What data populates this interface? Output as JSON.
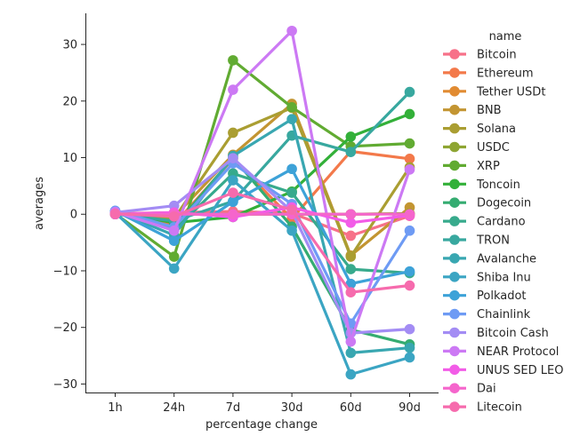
{
  "chart_data": {
    "type": "line",
    "xlabel": "percentage change",
    "ylabel": "averages",
    "categories": [
      "1h",
      "24h",
      "7d",
      "30d",
      "60d",
      "90d"
    ],
    "ylim": [
      -31.5,
      35.5
    ],
    "yticks": [
      -30,
      -20,
      -10,
      0,
      10,
      20,
      30
    ],
    "grid": false,
    "legend": {
      "title": "name",
      "placement": "right"
    },
    "series": [
      {
        "name": "Bitcoin",
        "color": "#f77189",
        "values": [
          0.1,
          0.3,
          0.5,
          0.2,
          -3.8,
          -0.3
        ]
      },
      {
        "name": "Ethereum",
        "color": "#f3794a",
        "values": [
          0.2,
          -1.8,
          9.8,
          -0.8,
          11.1,
          9.8
        ]
      },
      {
        "name": "Tether USDt",
        "color": "#e18b32",
        "values": [
          0.0,
          0.0,
          0.0,
          0.0,
          0.0,
          0.1
        ]
      },
      {
        "name": "BNB",
        "color": "#c39532",
        "values": [
          0.2,
          -0.5,
          10.5,
          19.5,
          -7.3,
          1.2
        ]
      },
      {
        "name": "Solana",
        "color": "#aa9e32",
        "values": [
          0.4,
          -0.8,
          14.4,
          18.8,
          -7.5,
          8.3
        ]
      },
      {
        "name": "USDC",
        "color": "#8ea532",
        "values": [
          0.0,
          0.0,
          0.0,
          0.0,
          0.0,
          0.1
        ]
      },
      {
        "name": "XRP",
        "color": "#61ab32",
        "values": [
          0.1,
          -7.5,
          27.2,
          18.9,
          12.0,
          12.5
        ]
      },
      {
        "name": "Toncoin",
        "color": "#33b039",
        "values": [
          0.3,
          -1.5,
          -0.5,
          4.0,
          13.7,
          17.7
        ]
      },
      {
        "name": "Dogecoin",
        "color": "#35ac71",
        "values": [
          0.5,
          -2.3,
          10.0,
          -2.2,
          -20.4,
          -23.0
        ]
      },
      {
        "name": "Cardano",
        "color": "#37aa8c",
        "values": [
          0.4,
          -2.8,
          7.2,
          3.8,
          -9.7,
          -10.4
        ]
      },
      {
        "name": "TRON",
        "color": "#38a89f",
        "values": [
          0.0,
          -1.2,
          2.3,
          13.9,
          11.0,
          21.6
        ]
      },
      {
        "name": "Avalanche",
        "color": "#39a7b1",
        "values": [
          0.5,
          -3.7,
          10.3,
          16.8,
          -24.5,
          -23.6
        ]
      },
      {
        "name": "Shiba Inu",
        "color": "#3ba5c3",
        "values": [
          0.3,
          -9.6,
          6.0,
          -2.9,
          -28.3,
          -25.3
        ]
      },
      {
        "name": "Polkadot",
        "color": "#3da2d8",
        "values": [
          0.6,
          -4.7,
          2.2,
          8.0,
          -12.3,
          -10.1
        ]
      },
      {
        "name": "Chainlink",
        "color": "#6e9bf4",
        "values": [
          0.6,
          -2.3,
          9.0,
          1.8,
          -19.3,
          -2.9
        ]
      },
      {
        "name": "Bitcoin Cash",
        "color": "#a38cf4",
        "values": [
          0.3,
          1.5,
          9.9,
          0.5,
          -21.0,
          -20.3
        ]
      },
      {
        "name": "NEAR Protocol",
        "color": "#cc79f4",
        "values": [
          0.4,
          -2.9,
          22.0,
          32.4,
          -22.5,
          7.9
        ]
      },
      {
        "name": "UNUS SED LEO",
        "color": "#f25ce7",
        "values": [
          0.0,
          0.3,
          -0.5,
          1.2,
          -1.5,
          -0.2
        ]
      },
      {
        "name": "Dai",
        "color": "#f565cc",
        "values": [
          0.0,
          0.0,
          0.0,
          0.0,
          0.0,
          0.0
        ]
      },
      {
        "name": "Litecoin",
        "color": "#f66bad",
        "values": [
          0.1,
          -0.4,
          3.8,
          0.8,
          -13.8,
          -12.6
        ]
      }
    ]
  }
}
